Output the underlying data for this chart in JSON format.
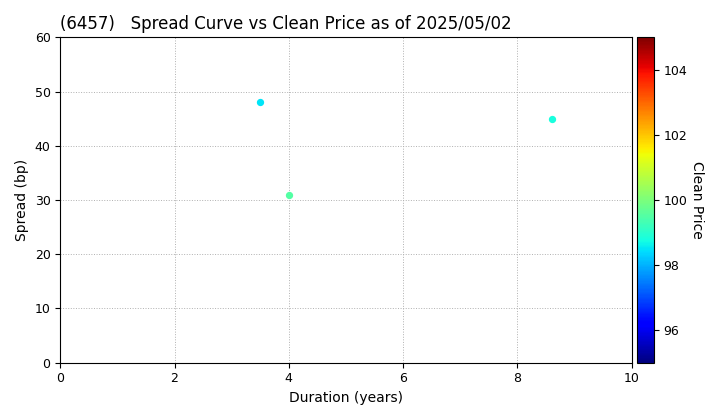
{
  "title": "(6457)   Spread Curve vs Clean Price as of 2025/05/02",
  "xlabel": "Duration (years)",
  "ylabel": "Spread (bp)",
  "colorbar_label": "Clean Price",
  "xlim": [
    0,
    10
  ],
  "ylim": [
    0,
    60
  ],
  "xticks": [
    0,
    2,
    4,
    6,
    8,
    10
  ],
  "yticks": [
    0,
    10,
    20,
    30,
    40,
    50,
    60
  ],
  "colorbar_min": 95,
  "colorbar_max": 105,
  "colorbar_ticks": [
    96,
    98,
    100,
    102,
    104
  ],
  "points": [
    {
      "duration": 3.5,
      "spread": 48,
      "clean_price": 98.5
    },
    {
      "duration": 4.0,
      "spread": 31,
      "clean_price": 99.5
    },
    {
      "duration": 8.6,
      "spread": 45,
      "clean_price": 98.8
    }
  ],
  "background_color": "#ffffff",
  "grid_color": "#b0b0b0",
  "title_fontsize": 12,
  "axis_label_fontsize": 10,
  "tick_fontsize": 9,
  "point_size": 18
}
